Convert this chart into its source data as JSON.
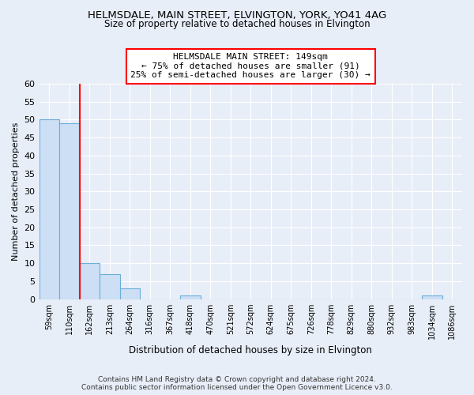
{
  "title": "HELMSDALE, MAIN STREET, ELVINGTON, YORK, YO41 4AG",
  "subtitle": "Size of property relative to detached houses in Elvington",
  "xlabel": "Distribution of detached houses by size in Elvington",
  "ylabel": "Number of detached properties",
  "bin_labels": [
    "59sqm",
    "110sqm",
    "162sqm",
    "213sqm",
    "264sqm",
    "316sqm",
    "367sqm",
    "418sqm",
    "470sqm",
    "521sqm",
    "572sqm",
    "624sqm",
    "675sqm",
    "726sqm",
    "778sqm",
    "829sqm",
    "880sqm",
    "932sqm",
    "983sqm",
    "1034sqm",
    "1086sqm"
  ],
  "bar_heights": [
    50,
    49,
    10,
    7,
    3,
    0,
    0,
    1,
    0,
    0,
    0,
    0,
    0,
    0,
    0,
    0,
    0,
    0,
    0,
    1,
    0
  ],
  "bar_color": "#ccdff5",
  "bar_edge_color": "#6baed6",
  "annotation_box_text": "HELMSDALE MAIN STREET: 149sqm\n← 75% of detached houses are smaller (91)\n25% of semi-detached houses are larger (30) →",
  "ylim": [
    0,
    60
  ],
  "yticks": [
    0,
    5,
    10,
    15,
    20,
    25,
    30,
    35,
    40,
    45,
    50,
    55,
    60
  ],
  "background_color": "#e8eef8",
  "grid_color": "#ffffff",
  "footer_line1": "Contains HM Land Registry data © Crown copyright and database right 2024.",
  "footer_line2": "Contains public sector information licensed under the Open Government Licence v3.0."
}
